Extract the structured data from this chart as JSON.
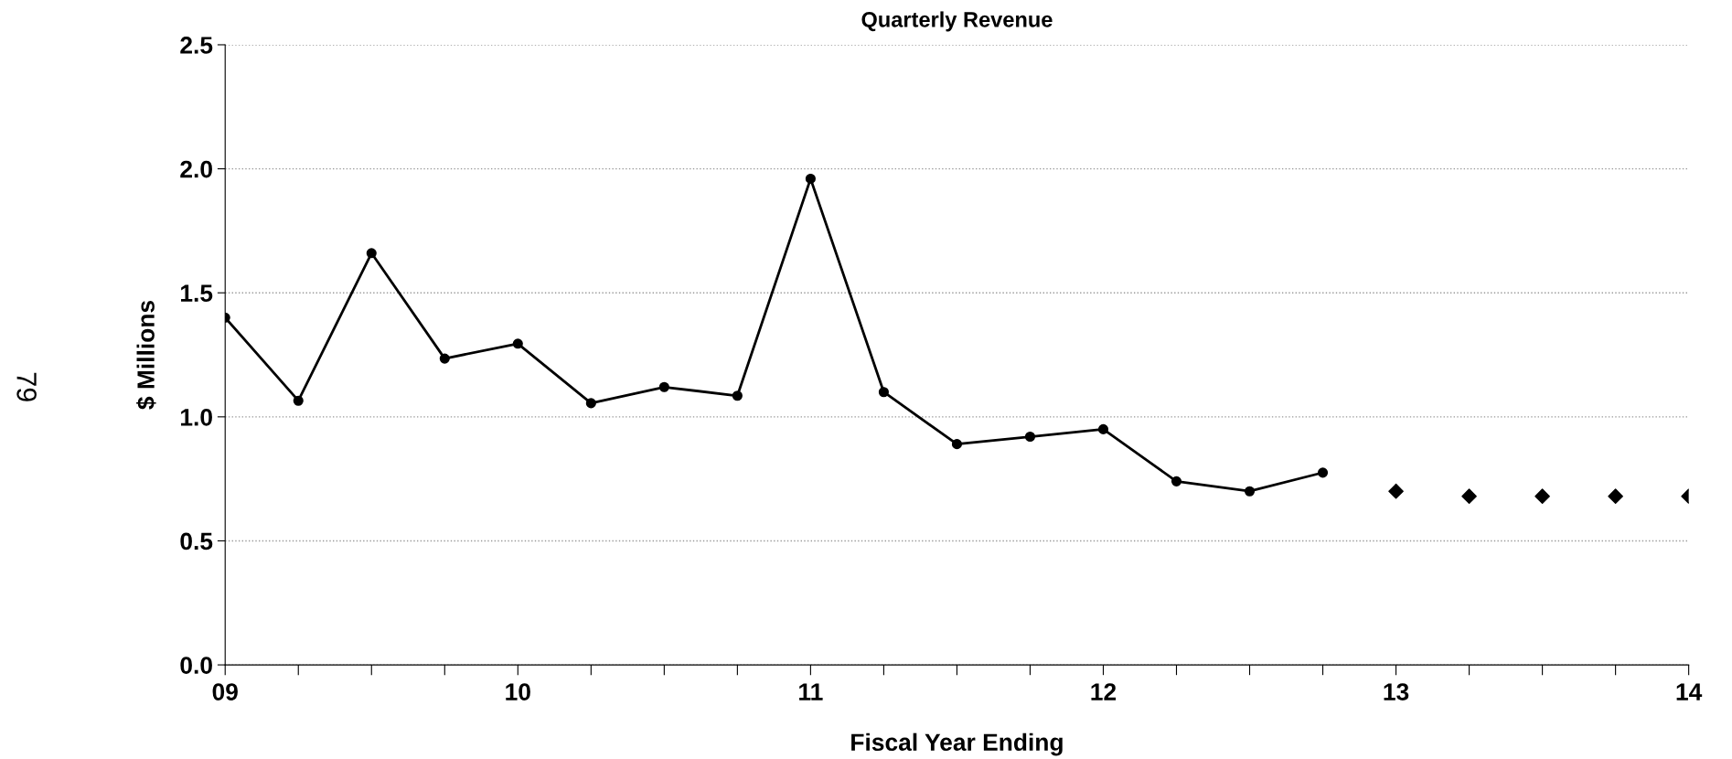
{
  "chart_data": {
    "type": "line",
    "title": "Quarterly Revenue",
    "xlabel": "Fiscal Year Ending",
    "ylabel": "$ Millions",
    "annotations": [
      "79"
    ],
    "series": [
      {
        "type": "line",
        "color": "#000000",
        "marker": "circle",
        "x": [
          9,
          9.25,
          9.5,
          9.75,
          10,
          10.25,
          10.5,
          10.75,
          11,
          11.25,
          11.5,
          11.75,
          12,
          12.25,
          12.5,
          12.75
        ],
        "values": [
          1.4,
          1.065,
          1.66,
          1.235,
          1.295,
          1.055,
          1.12,
          1.085,
          1.96,
          1.1,
          0.89,
          0.92,
          0.95,
          0.74,
          0.7,
          0.775
        ]
      },
      {
        "type": "scatter",
        "color": "#000000",
        "marker": "diamond",
        "x": [
          13,
          13.25,
          13.5,
          13.75,
          14
        ],
        "values": [
          0.7,
          0.68,
          0.68,
          0.68,
          0.68
        ]
      }
    ],
    "xlim": [
      9,
      14
    ],
    "xticks": [
      {
        "value": 9,
        "label": "09"
      },
      {
        "value": 9.25,
        "label": null
      },
      {
        "value": 9.5,
        "label": null
      },
      {
        "value": 9.75,
        "label": null
      },
      {
        "value": 10,
        "label": "10"
      },
      {
        "value": 10.25,
        "label": null
      },
      {
        "value": 10.5,
        "label": null
      },
      {
        "value": 10.75,
        "label": null
      },
      {
        "value": 11,
        "label": "11"
      },
      {
        "value": 11.25,
        "label": null
      },
      {
        "value": 11.5,
        "label": null
      },
      {
        "value": 11.75,
        "label": null
      },
      {
        "value": 12,
        "label": "12"
      },
      {
        "value": 12.25,
        "label": null
      },
      {
        "value": 12.5,
        "label": null
      },
      {
        "value": 12.75,
        "label": null
      },
      {
        "value": 13,
        "label": "13"
      },
      {
        "value": 13.25,
        "label": null
      },
      {
        "value": 13.5,
        "label": null
      },
      {
        "value": 13.75,
        "label": null
      },
      {
        "value": 14,
        "label": "14"
      }
    ],
    "ylim": [
      0,
      2.5
    ],
    "yticks": [
      {
        "value": 0,
        "label": "0.0"
      },
      {
        "value": 0.5,
        "label": "0.5"
      },
      {
        "value": 1,
        "label": "1.0"
      },
      {
        "value": 1.5,
        "label": "1.5"
      },
      {
        "value": 2,
        "label": "2.0"
      },
      {
        "value": 2.5,
        "label": "2.5"
      }
    ],
    "grid": "y"
  }
}
